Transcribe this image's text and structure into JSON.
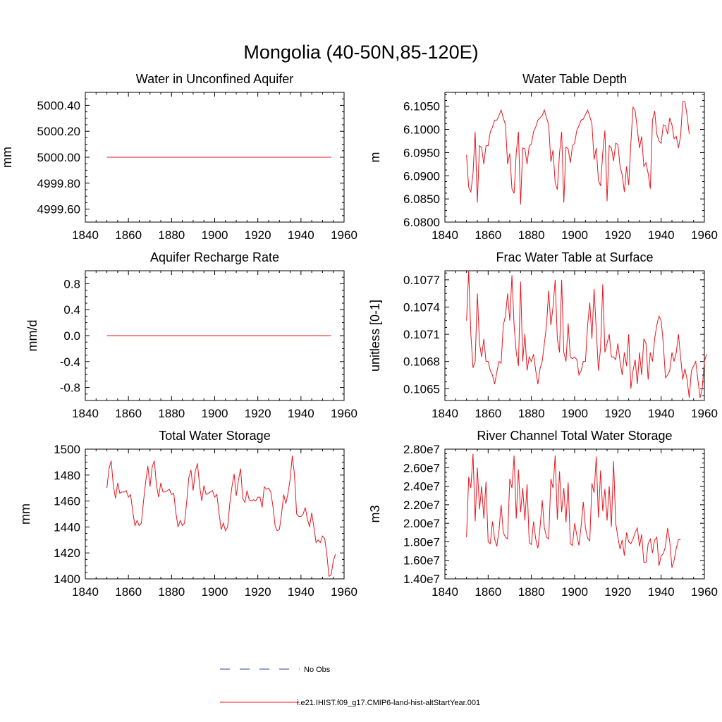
{
  "title": "Mongolia (40-50N,85-120E)",
  "legend": {
    "items": [
      {
        "label": "No Obs",
        "color": "#2f3fa3",
        "dash": true
      },
      {
        "label": "i.e21.IHIST.f09_g17.CMIP6-land-hist-altStartYear.001",
        "color": "#e8161f",
        "dash": false
      }
    ]
  },
  "chart_data": [
    {
      "type": "line",
      "title": "Water in Unconfined Aquifer",
      "ylabel": "mm",
      "xlim": [
        1840,
        1960
      ],
      "ylim": [
        4999.5,
        5000.5
      ],
      "xticks": [
        1840,
        1860,
        1880,
        1900,
        1920,
        1940,
        1960
      ],
      "yticks": [
        4999.6,
        4999.8,
        5000.0,
        5000.2,
        5000.4
      ],
      "ytick_labels": [
        "4999.60",
        "4999.80",
        "5000.00",
        "5000.20",
        "5000.40"
      ],
      "x_start": 1850,
      "series": [
        {
          "color": "#e8161f",
          "values": [
            5000,
            5000,
            5000,
            5000,
            5000,
            5000,
            5000,
            5000,
            5000,
            5000,
            5000,
            5000,
            5000,
            5000,
            5000,
            5000,
            5000,
            5000,
            5000,
            5000,
            5000,
            5000,
            5000,
            5000,
            5000,
            5000,
            5000,
            5000,
            5000,
            5000,
            5000,
            5000,
            5000,
            5000,
            5000,
            5000,
            5000,
            5000,
            5000,
            5000,
            5000,
            5000,
            5000,
            5000,
            5000,
            5000,
            5000,
            5000,
            5000,
            5000,
            5000,
            5000,
            5000,
            5000,
            5000,
            5000,
            5000,
            5000,
            5000,
            5000,
            5000,
            5000,
            5000,
            5000,
            5000,
            5000,
            5000,
            5000,
            5000,
            5000,
            5000,
            5000,
            5000,
            5000,
            5000,
            5000,
            5000,
            5000,
            5000,
            5000,
            5000,
            5000,
            5000,
            5000,
            5000,
            5000,
            5000,
            5000,
            5000,
            5000,
            5000,
            5000,
            5000,
            5000,
            5000,
            5000,
            5000,
            5000,
            5000,
            5000,
            5000,
            5000,
            5000,
            5000,
            5000
          ]
        }
      ]
    },
    {
      "type": "line",
      "title": "Water Table Depth",
      "ylabel": "m",
      "xlim": [
        1840,
        1960
      ],
      "ylim": [
        6.08,
        6.108
      ],
      "xticks": [
        1840,
        1860,
        1880,
        1900,
        1920,
        1940,
        1960
      ],
      "yticks": [
        6.08,
        6.085,
        6.09,
        6.095,
        6.1,
        6.105
      ],
      "ytick_labels": [
        "6.0800",
        "6.0850",
        "6.0900",
        "6.0950",
        "6.1000",
        "6.1050"
      ],
      "x_start": 1850,
      "series": [
        {
          "color": "#e8161f",
          "values": [
            6.0945,
            6.0875,
            6.0865,
            6.0905,
            6.0995,
            6.0842,
            6.0965,
            6.096,
            6.0925,
            6.0965,
            6.0965,
            6.0995,
            6.1005,
            6.102,
            6.102,
            6.103,
            6.1042,
            6.1025,
            6.101,
            6.0925,
            6.0948,
            6.0872,
            6.0862,
            6.095,
            6.0995,
            6.0838,
            6.096,
            6.0958,
            6.0925,
            6.0965,
            6.0968,
            6.0995,
            6.1005,
            6.102,
            6.1025,
            6.103,
            6.1042,
            6.1025,
            6.101,
            6.093,
            6.0955,
            6.0885,
            6.087,
            6.0948,
            6.0995,
            6.0842,
            6.0962,
            6.0958,
            6.0928,
            6.0965,
            6.097,
            6.0998,
            6.1008,
            6.102,
            6.1022,
            6.1032,
            6.1042,
            6.1028,
            6.1012,
            6.0935,
            6.096,
            6.089,
            6.0878,
            6.095,
            6.0998,
            6.0845,
            6.0965,
            6.096,
            6.0932,
            6.097,
            6.0968,
            6.092,
            6.0902,
            6.0865,
            6.092,
            6.088,
            6.097,
            6.1048,
            6.104,
            6.1,
            6.096,
            6.0985,
            6.092,
            6.0928,
            6.0905,
            6.0872,
            6.102,
            6.104,
            6.099,
            6.0975,
            6.097,
            6.101,
            6.1008,
            6.099,
            6.1025,
            6.101,
            6.098,
            6.0985,
            6.096,
            6.0985,
            6.106,
            6.106,
            6.103,
            6.099
          ]
        }
      ]
    },
    {
      "type": "line",
      "title": "Aquifer Recharge Rate",
      "ylabel": "mm/d",
      "xlim": [
        1840,
        1960
      ],
      "ylim": [
        -1.0,
        1.0
      ],
      "xticks": [
        1840,
        1860,
        1880,
        1900,
        1920,
        1940,
        1960
      ],
      "yticks": [
        -0.8,
        -0.4,
        0.0,
        0.4,
        0.8
      ],
      "ytick_labels": [
        "-0.8",
        "-0.4",
        "0.0",
        "0.4",
        "0.8"
      ],
      "x_start": 1850,
      "series": [
        {
          "color": "#e8161f",
          "values": [
            0,
            0,
            0,
            0,
            0,
            0,
            0,
            0,
            0,
            0,
            0,
            0,
            0,
            0,
            0,
            0,
            0,
            0,
            0,
            0,
            0,
            0,
            0,
            0,
            0,
            0,
            0,
            0,
            0,
            0,
            0,
            0,
            0,
            0,
            0,
            0,
            0,
            0,
            0,
            0,
            0,
            0,
            0,
            0,
            0,
            0,
            0,
            0,
            0,
            0,
            0,
            0,
            0,
            0,
            0,
            0,
            0,
            0,
            0,
            0,
            0,
            0,
            0,
            0,
            0,
            0,
            0,
            0,
            0,
            0,
            0,
            0,
            0,
            0,
            0,
            0,
            0,
            0,
            0,
            0,
            0,
            0,
            0,
            0,
            0,
            0,
            0,
            0,
            0,
            0,
            0,
            0,
            0,
            0,
            0,
            0,
            0,
            0,
            0,
            0,
            0,
            0,
            0,
            0,
            0
          ]
        }
      ]
    },
    {
      "type": "line",
      "title": "Frac Water Table at Surface",
      "ylabel": "unitless [0-1]",
      "xlim": [
        1840,
        1960
      ],
      "ylim": [
        0.10637,
        0.1078
      ],
      "xticks": [
        1840,
        1860,
        1880,
        1900,
        1920,
        1940,
        1960
      ],
      "yticks": [
        0.1065,
        0.1068,
        0.1071,
        0.1074,
        0.1077
      ],
      "ytick_labels": [
        "0.1065",
        "0.1068",
        "0.1071",
        "0.1074",
        "0.1077"
      ],
      "x_start": 1850,
      "series": [
        {
          "color": "#e8161f",
          "values": [
            0.10725,
            0.1078,
            0.1071,
            0.10673,
            0.1068,
            0.10755,
            0.107,
            0.10685,
            0.10705,
            0.1068,
            0.1068,
            0.1067,
            0.10665,
            0.10655,
            0.10668,
            0.1068,
            0.10678,
            0.1072,
            0.1073,
            0.10755,
            0.10725,
            0.10775,
            0.1072,
            0.1069,
            0.10675,
            0.10768,
            0.1068,
            0.1071,
            0.1067,
            0.10685,
            0.1068,
            0.10688,
            0.1067,
            0.10655,
            0.10672,
            0.1068,
            0.107,
            0.1072,
            0.10758,
            0.1072,
            0.1074,
            0.1077,
            0.10705,
            0.1069,
            0.1077,
            0.1069,
            0.1068,
            0.10722,
            0.10685,
            0.10683,
            0.10685,
            0.10682,
            0.10665,
            0.1067,
            0.1068,
            0.1068,
            0.1072,
            0.10745,
            0.10705,
            0.1076,
            0.10715,
            0.1067,
            0.10695,
            0.10765,
            0.1069,
            0.107,
            0.1071,
            0.10685,
            0.10685,
            0.10682,
            0.107,
            0.1068,
            0.10665,
            0.1069,
            0.10675,
            0.1071,
            0.1065,
            0.1067,
            0.10682,
            0.10655,
            0.1069,
            0.10665,
            0.10705,
            0.107,
            0.1066,
            0.1069,
            0.1068,
            0.10705,
            0.1072,
            0.1073,
            0.10725,
            0.107,
            0.10662,
            0.10665,
            0.1067,
            0.1069,
            0.1068,
            0.1069,
            0.1071,
            0.10685,
            0.1066,
            0.10672,
            0.1066,
            0.1064,
            0.1067,
            0.10675,
            0.1068,
            0.1066,
            0.1064,
            0.1065,
            0.1068,
            0.10688
          ]
        }
      ]
    },
    {
      "type": "line",
      "title": "Total Water Storage",
      "ylabel": "mm",
      "xlim": [
        1840,
        1960
      ],
      "ylim": [
        1400,
        1500
      ],
      "xticks": [
        1840,
        1860,
        1880,
        1900,
        1920,
        1940,
        1960
      ],
      "yticks": [
        1400,
        1420,
        1440,
        1460,
        1480,
        1500
      ],
      "ytick_labels": [
        "1400",
        "1420",
        "1440",
        "1460",
        "1480",
        "1500"
      ],
      "x_start": 1850,
      "series": [
        {
          "color": "#e8161f",
          "values": [
            1470,
            1485,
            1491,
            1472,
            1462,
            1474,
            1466,
            1467,
            1467,
            1468,
            1463,
            1465,
            1452,
            1441,
            1445,
            1441,
            1443,
            1460,
            1475,
            1487,
            1471,
            1486,
            1491,
            1472,
            1463,
            1474,
            1467,
            1467,
            1468,
            1469,
            1465,
            1466,
            1451,
            1440,
            1445,
            1441,
            1443,
            1459,
            1478,
            1484,
            1468,
            1483,
            1489,
            1472,
            1460,
            1472,
            1465,
            1466,
            1467,
            1468,
            1463,
            1465,
            1451,
            1438,
            1443,
            1437,
            1440,
            1458,
            1471,
            1481,
            1464,
            1476,
            1485,
            1462,
            1459,
            1468,
            1461,
            1460,
            1461,
            1460,
            1463,
            1463,
            1455,
            1471,
            1469,
            1470,
            1467,
            1456,
            1441,
            1437,
            1438,
            1450,
            1465,
            1458,
            1466,
            1477,
            1495,
            1480,
            1450,
            1448,
            1448,
            1450,
            1455,
            1446,
            1440,
            1451,
            1440,
            1428,
            1430,
            1428,
            1433,
            1431,
            1419,
            1402,
            1403,
            1414,
            1419
          ]
        }
      ]
    },
    {
      "type": "line",
      "title": "River Channel Total Water Storage",
      "ylabel": "m3",
      "xlim": [
        1840,
        1960
      ],
      "ylim": [
        14000000,
        28000000
      ],
      "xticks": [
        1840,
        1860,
        1880,
        1900,
        1920,
        1940,
        1960
      ],
      "yticks": [
        14000000,
        16000000,
        18000000,
        20000000,
        22000000,
        24000000,
        26000000,
        28000000
      ],
      "ytick_labels": [
        "1.40e7",
        "1.60e7",
        "1.80e7",
        "2.00e7",
        "2.20e7",
        "2.40e7",
        "2.60e7",
        "2.80e7"
      ],
      "x_start": 1850,
      "series": [
        {
          "color": "#e8161f",
          "values": [
            18500000,
            25000000,
            23800000,
            27500000,
            20200000,
            26000000,
            21500000,
            24000000,
            20500000,
            24500000,
            18000000,
            17800000,
            20200000,
            18300000,
            17500000,
            19200000,
            22000000,
            19000000,
            18500000,
            18300000,
            24800000,
            23800000,
            27300000,
            20500000,
            25800000,
            21200000,
            23800000,
            20300000,
            24200000,
            17900000,
            17700000,
            20200000,
            18300000,
            17300000,
            19500000,
            22500000,
            19500000,
            18500000,
            18300000,
            24800000,
            23800000,
            27300000,
            20400000,
            25600000,
            21200000,
            23800000,
            20100000,
            24400000,
            17800000,
            17600000,
            20000000,
            18700000,
            17600000,
            19700000,
            22300000,
            19500000,
            18400000,
            18100000,
            24300000,
            23300000,
            27200000,
            20600000,
            25700000,
            21300000,
            23700000,
            20300000,
            24000000,
            19600000,
            26700000,
            20000000,
            18500000,
            17200000,
            18200000,
            16500000,
            19000000,
            18000000,
            17800000,
            18300000,
            19000000,
            19500000,
            17500000,
            18800000,
            15800000,
            15800000,
            17800000,
            18300000,
            16800000,
            18200000,
            18500000,
            15400000,
            16500000,
            16700000,
            17500000,
            19500000,
            18000000,
            15200000,
            16000000,
            17300000,
            18200000,
            18300000
          ]
        }
      ]
    }
  ]
}
